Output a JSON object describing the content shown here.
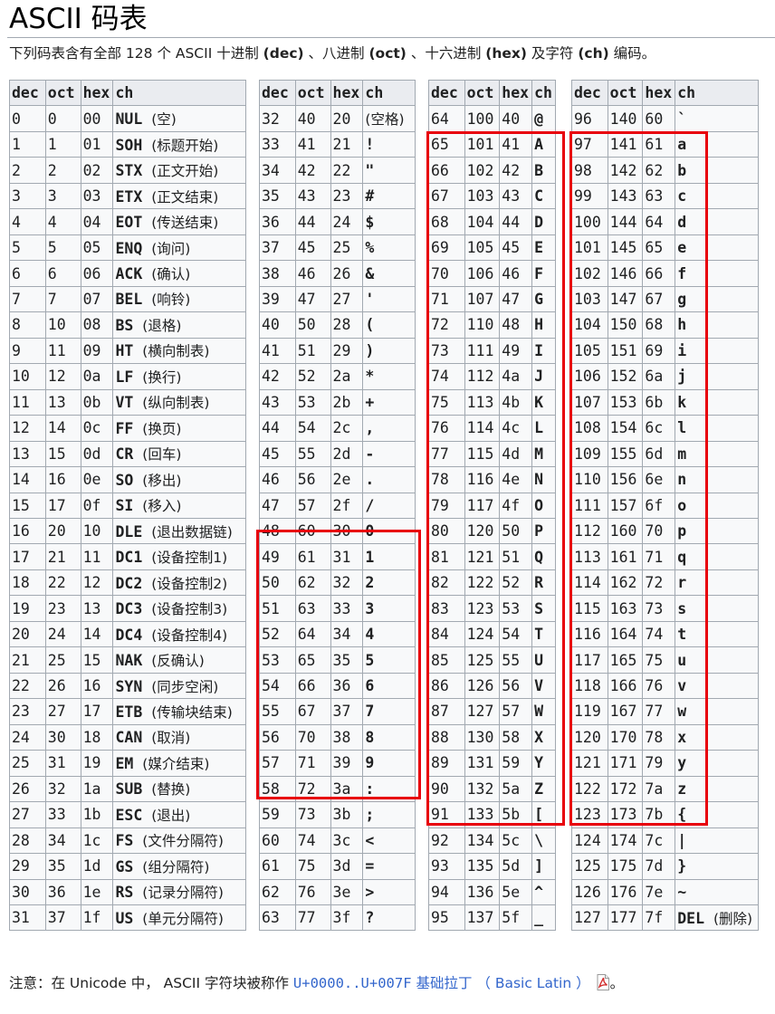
{
  "page": {
    "title": "ASCII 码表",
    "intro": {
      "prefix": "下列码表含有全部 128 个 ASCII 十进制 ",
      "dec": "(dec)",
      "sep1": " 、八进制 ",
      "oct": "(oct)",
      "sep2": " 、十六进制 ",
      "hex": "(hex)",
      "sep3": " 及字符 ",
      "ch": "(ch)",
      "suffix": " 编码。"
    }
  },
  "table": {
    "headers": [
      "dec",
      "oct",
      "hex",
      "ch"
    ],
    "rows": [
      [
        [
          "0",
          "0",
          "00",
          "NUL",
          "(空)"
        ],
        [
          "32",
          "40",
          "20",
          "",
          "(空格)"
        ],
        [
          "64",
          "100",
          "40",
          "@",
          ""
        ],
        [
          "96",
          "140",
          "60",
          "`",
          ""
        ]
      ],
      [
        [
          "1",
          "1",
          "01",
          "SOH",
          "(标题开始)"
        ],
        [
          "33",
          "41",
          "21",
          "!",
          ""
        ],
        [
          "65",
          "101",
          "41",
          "A",
          ""
        ],
        [
          "97",
          "141",
          "61",
          "a",
          ""
        ]
      ],
      [
        [
          "2",
          "2",
          "02",
          "STX",
          "(正文开始)"
        ],
        [
          "34",
          "42",
          "22",
          "\"",
          ""
        ],
        [
          "66",
          "102",
          "42",
          "B",
          ""
        ],
        [
          "98",
          "142",
          "62",
          "b",
          ""
        ]
      ],
      [
        [
          "3",
          "3",
          "03",
          "ETX",
          "(正文结束)"
        ],
        [
          "35",
          "43",
          "23",
          "#",
          ""
        ],
        [
          "67",
          "103",
          "43",
          "C",
          ""
        ],
        [
          "99",
          "143",
          "63",
          "c",
          ""
        ]
      ],
      [
        [
          "4",
          "4",
          "04",
          "EOT",
          "(传送结束)"
        ],
        [
          "36",
          "44",
          "24",
          "$",
          ""
        ],
        [
          "68",
          "104",
          "44",
          "D",
          ""
        ],
        [
          "100",
          "144",
          "64",
          "d",
          ""
        ]
      ],
      [
        [
          "5",
          "5",
          "05",
          "ENQ",
          "(询问)"
        ],
        [
          "37",
          "45",
          "25",
          "%",
          ""
        ],
        [
          "69",
          "105",
          "45",
          "E",
          ""
        ],
        [
          "101",
          "145",
          "65",
          "e",
          ""
        ]
      ],
      [
        [
          "6",
          "6",
          "06",
          "ACK",
          "(确认)"
        ],
        [
          "38",
          "46",
          "26",
          "&",
          ""
        ],
        [
          "70",
          "106",
          "46",
          "F",
          ""
        ],
        [
          "102",
          "146",
          "66",
          "f",
          ""
        ]
      ],
      [
        [
          "7",
          "7",
          "07",
          "BEL",
          "(响铃)"
        ],
        [
          "39",
          "47",
          "27",
          "'",
          ""
        ],
        [
          "71",
          "107",
          "47",
          "G",
          ""
        ],
        [
          "103",
          "147",
          "67",
          "g",
          ""
        ]
      ],
      [
        [
          "8",
          "10",
          "08",
          "BS",
          "(退格)"
        ],
        [
          "40",
          "50",
          "28",
          "(",
          ""
        ],
        [
          "72",
          "110",
          "48",
          "H",
          ""
        ],
        [
          "104",
          "150",
          "68",
          "h",
          ""
        ]
      ],
      [
        [
          "9",
          "11",
          "09",
          "HT",
          "(横向制表)"
        ],
        [
          "41",
          "51",
          "29",
          ")",
          ""
        ],
        [
          "73",
          "111",
          "49",
          "I",
          ""
        ],
        [
          "105",
          "151",
          "69",
          "i",
          ""
        ]
      ],
      [
        [
          "10",
          "12",
          "0a",
          "LF",
          "(换行)"
        ],
        [
          "42",
          "52",
          "2a",
          "*",
          ""
        ],
        [
          "74",
          "112",
          "4a",
          "J",
          ""
        ],
        [
          "106",
          "152",
          "6a",
          "j",
          ""
        ]
      ],
      [
        [
          "11",
          "13",
          "0b",
          "VT",
          "(纵向制表)"
        ],
        [
          "43",
          "53",
          "2b",
          "+",
          ""
        ],
        [
          "75",
          "113",
          "4b",
          "K",
          ""
        ],
        [
          "107",
          "153",
          "6b",
          "k",
          ""
        ]
      ],
      [
        [
          "12",
          "14",
          "0c",
          "FF",
          "(换页)"
        ],
        [
          "44",
          "54",
          "2c",
          ",",
          ""
        ],
        [
          "76",
          "114",
          "4c",
          "L",
          ""
        ],
        [
          "108",
          "154",
          "6c",
          "l",
          ""
        ]
      ],
      [
        [
          "13",
          "15",
          "0d",
          "CR",
          "(回车)"
        ],
        [
          "45",
          "55",
          "2d",
          "-",
          ""
        ],
        [
          "77",
          "115",
          "4d",
          "M",
          ""
        ],
        [
          "109",
          "155",
          "6d",
          "m",
          ""
        ]
      ],
      [
        [
          "14",
          "16",
          "0e",
          "SO",
          "(移出)"
        ],
        [
          "46",
          "56",
          "2e",
          ".",
          ""
        ],
        [
          "78",
          "116",
          "4e",
          "N",
          ""
        ],
        [
          "110",
          "156",
          "6e",
          "n",
          ""
        ]
      ],
      [
        [
          "15",
          "17",
          "0f",
          "SI",
          "(移入)"
        ],
        [
          "47",
          "57",
          "2f",
          "/",
          ""
        ],
        [
          "79",
          "117",
          "4f",
          "O",
          ""
        ],
        [
          "111",
          "157",
          "6f",
          "o",
          ""
        ]
      ],
      [
        [
          "16",
          "20",
          "10",
          "DLE",
          "(退出数据链)"
        ],
        [
          "48",
          "60",
          "30",
          "0",
          ""
        ],
        [
          "80",
          "120",
          "50",
          "P",
          ""
        ],
        [
          "112",
          "160",
          "70",
          "p",
          ""
        ]
      ],
      [
        [
          "17",
          "21",
          "11",
          "DC1",
          "(设备控制1)"
        ],
        [
          "49",
          "61",
          "31",
          "1",
          ""
        ],
        [
          "81",
          "121",
          "51",
          "Q",
          ""
        ],
        [
          "113",
          "161",
          "71",
          "q",
          ""
        ]
      ],
      [
        [
          "18",
          "22",
          "12",
          "DC2",
          "(设备控制2)"
        ],
        [
          "50",
          "62",
          "32",
          "2",
          ""
        ],
        [
          "82",
          "122",
          "52",
          "R",
          ""
        ],
        [
          "114",
          "162",
          "72",
          "r",
          ""
        ]
      ],
      [
        [
          "19",
          "23",
          "13",
          "DC3",
          "(设备控制3)"
        ],
        [
          "51",
          "63",
          "33",
          "3",
          ""
        ],
        [
          "83",
          "123",
          "53",
          "S",
          ""
        ],
        [
          "115",
          "163",
          "73",
          "s",
          ""
        ]
      ],
      [
        [
          "20",
          "24",
          "14",
          "DC4",
          "(设备控制4)"
        ],
        [
          "52",
          "64",
          "34",
          "4",
          ""
        ],
        [
          "84",
          "124",
          "54",
          "T",
          ""
        ],
        [
          "116",
          "164",
          "74",
          "t",
          ""
        ]
      ],
      [
        [
          "21",
          "25",
          "15",
          "NAK",
          "(反确认)"
        ],
        [
          "53",
          "65",
          "35",
          "5",
          ""
        ],
        [
          "85",
          "125",
          "55",
          "U",
          ""
        ],
        [
          "117",
          "165",
          "75",
          "u",
          ""
        ]
      ],
      [
        [
          "22",
          "26",
          "16",
          "SYN",
          "(同步空闲)"
        ],
        [
          "54",
          "66",
          "36",
          "6",
          ""
        ],
        [
          "86",
          "126",
          "56",
          "V",
          ""
        ],
        [
          "118",
          "166",
          "76",
          "v",
          ""
        ]
      ],
      [
        [
          "23",
          "27",
          "17",
          "ETB",
          "(传输块结束)"
        ],
        [
          "55",
          "67",
          "37",
          "7",
          ""
        ],
        [
          "87",
          "127",
          "57",
          "W",
          ""
        ],
        [
          "119",
          "167",
          "77",
          "w",
          ""
        ]
      ],
      [
        [
          "24",
          "30",
          "18",
          "CAN",
          "(取消)"
        ],
        [
          "56",
          "70",
          "38",
          "8",
          ""
        ],
        [
          "88",
          "130",
          "58",
          "X",
          ""
        ],
        [
          "120",
          "170",
          "78",
          "x",
          ""
        ]
      ],
      [
        [
          "25",
          "31",
          "19",
          "EM",
          "(媒介结束)"
        ],
        [
          "57",
          "71",
          "39",
          "9",
          ""
        ],
        [
          "89",
          "131",
          "59",
          "Y",
          ""
        ],
        [
          "121",
          "171",
          "79",
          "y",
          ""
        ]
      ],
      [
        [
          "26",
          "32",
          "1a",
          "SUB",
          "(替换)"
        ],
        [
          "58",
          "72",
          "3a",
          ":",
          ""
        ],
        [
          "90",
          "132",
          "5a",
          "Z",
          ""
        ],
        [
          "122",
          "172",
          "7a",
          "z",
          ""
        ]
      ],
      [
        [
          "27",
          "33",
          "1b",
          "ESC",
          "(退出)"
        ],
        [
          "59",
          "73",
          "3b",
          ";",
          ""
        ],
        [
          "91",
          "133",
          "5b",
          "[",
          ""
        ],
        [
          "123",
          "173",
          "7b",
          "{",
          ""
        ]
      ],
      [
        [
          "28",
          "34",
          "1c",
          "FS",
          "(文件分隔符)"
        ],
        [
          "60",
          "74",
          "3c",
          "<",
          ""
        ],
        [
          "92",
          "134",
          "5c",
          "\\",
          ""
        ],
        [
          "124",
          "174",
          "7c",
          "|",
          ""
        ]
      ],
      [
        [
          "29",
          "35",
          "1d",
          "GS",
          "(组分隔符)"
        ],
        [
          "61",
          "75",
          "3d",
          "=",
          ""
        ],
        [
          "93",
          "135",
          "5d",
          "]",
          ""
        ],
        [
          "125",
          "175",
          "7d",
          "}",
          ""
        ]
      ],
      [
        [
          "30",
          "36",
          "1e",
          "RS",
          "(记录分隔符)"
        ],
        [
          "62",
          "76",
          "3e",
          ">",
          ""
        ],
        [
          "94",
          "136",
          "5e",
          "^",
          ""
        ],
        [
          "126",
          "176",
          "7e",
          "~",
          ""
        ]
      ],
      [
        [
          "31",
          "37",
          "1f",
          "US",
          "(单元分隔符)"
        ],
        [
          "63",
          "77",
          "3f",
          "?",
          ""
        ],
        [
          "95",
          "137",
          "5f",
          "_",
          ""
        ],
        [
          "127",
          "177",
          "7f",
          "DEL",
          "(删除)"
        ]
      ]
    ]
  },
  "highlight_color": "#e8000b",
  "note": {
    "prefix": "注意：在 Unicode 中， ASCII 字符块被称作 ",
    "link_code": "U+0000..U+007F",
    "link_text": " 基础拉丁 （ Basic Latin ）",
    "pdf_icon": "pdf-file-icon",
    "suffix": "。"
  }
}
